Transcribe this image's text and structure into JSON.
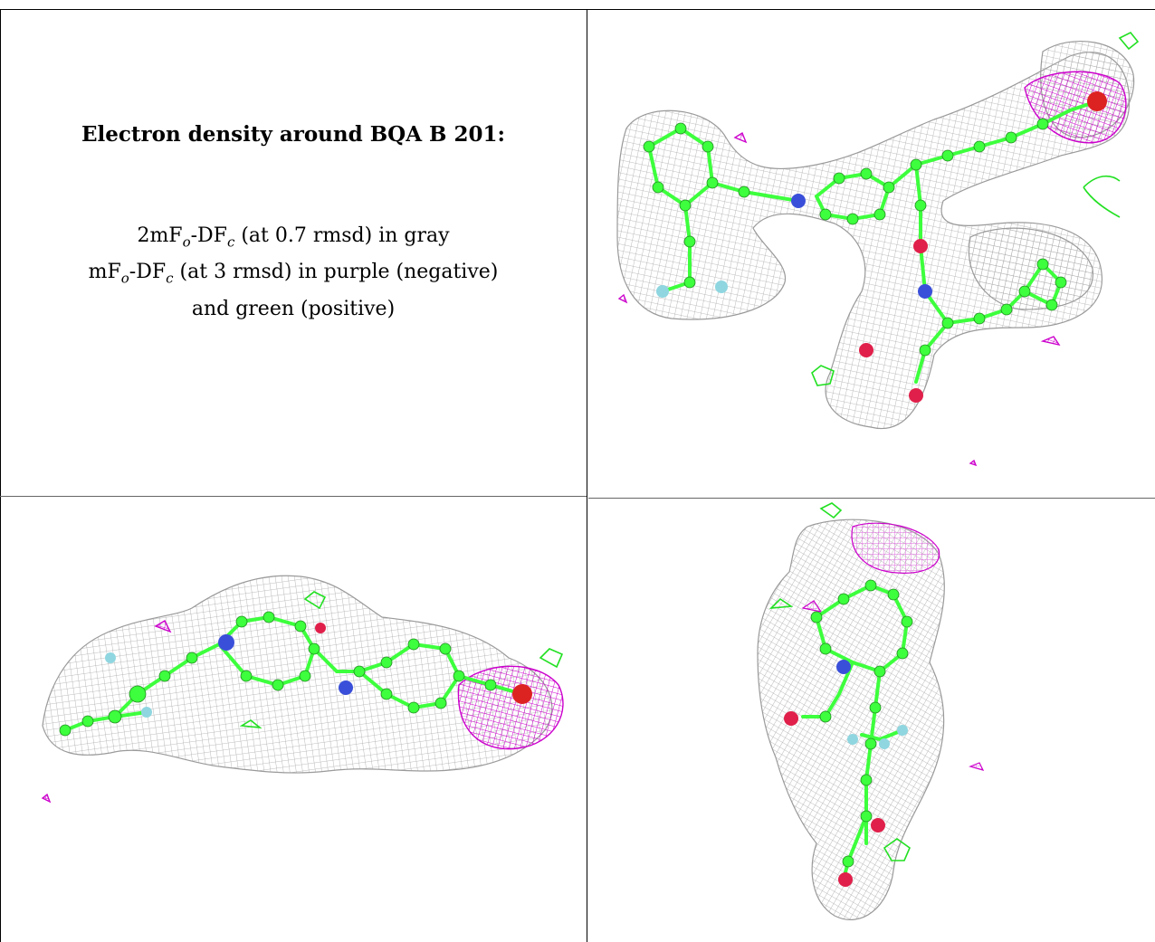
{
  "caption": {
    "title": "Electron density around BQA B 201:",
    "line1": {
      "a": "2mF",
      "a_sub": "o",
      "b": "-DF",
      "b_sub": "c",
      "rest": " (at 0.7 rmsd) in gray"
    },
    "line2": {
      "a": "mF",
      "a_sub": "o",
      "b": "-DF",
      "b_sub": "c",
      "rest": " (at 3 rmsd) in purple (negative)"
    },
    "line3": "and green (positive)"
  },
  "colors": {
    "mesh_gray": "#9a9a9a",
    "carbon_green": "#3dff3d",
    "nitrogen_blue": "#3a4fd9",
    "oxygen_red": "#e0204a",
    "fluorine_cyan": "#8fd6e0",
    "negative_purple": "#cc00cc",
    "positive_green": "#22e022",
    "border": "#000000"
  },
  "panels": [
    {
      "id": "top-right",
      "view": "front"
    },
    {
      "id": "bottom-left",
      "view": "side"
    },
    {
      "id": "bottom-right",
      "view": "end-on"
    }
  ]
}
